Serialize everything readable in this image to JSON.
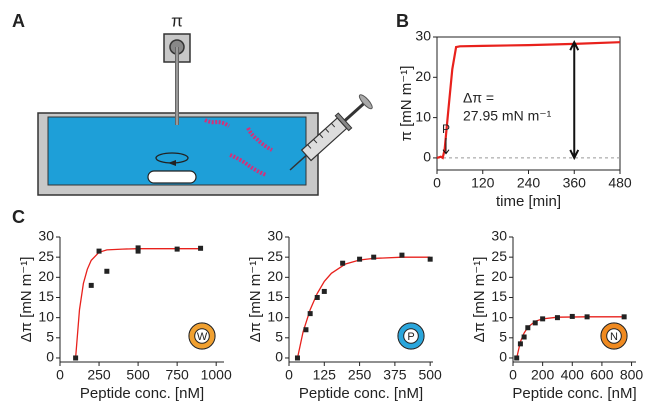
{
  "panel_labels": [
    "A",
    "B",
    "C"
  ],
  "diagram": {
    "balance_label": "π"
  },
  "chart_data": [
    {
      "type": "line",
      "x_label": "time [min]",
      "y_label": "π [mN m⁻¹]",
      "x": [
        0,
        10,
        15,
        20,
        30,
        40,
        50,
        60,
        120,
        240,
        360,
        480
      ],
      "values": [
        0,
        0.3,
        0,
        2,
        12,
        22,
        27.5,
        27.7,
        27.8,
        28,
        28.3,
        28.7
      ],
      "color": "#e8211c",
      "baseline": 0,
      "xlim": [
        0,
        480
      ],
      "xticks": [
        0,
        120,
        240,
        360,
        480
      ],
      "ylim": [
        -3,
        30
      ],
      "yticks": [
        0,
        10,
        20,
        30
      ],
      "annotations": [
        "Δπ =",
        "27.95 mN m⁻¹",
        "P"
      ]
    },
    {
      "type": "scatter",
      "x_label": "Peptide conc. [nM]",
      "y_label": "Δπ [mN m⁻¹]",
      "x": [
        100,
        200,
        250,
        300,
        500,
        500,
        750,
        900
      ],
      "values": [
        0,
        18,
        26.5,
        21.5,
        26.5,
        27.3,
        27,
        27.2
      ],
      "color": "#222222",
      "fit": {
        "x": [
          100,
          125,
          150,
          175,
          200,
          250,
          300,
          400,
          500,
          700,
          900
        ],
        "values": [
          0,
          12,
          18.5,
          22,
          24.2,
          26.2,
          26.8,
          27,
          27.1,
          27.1,
          27.1
        ],
        "color": "#e8211c"
      },
      "xlim": [
        0,
        1050
      ],
      "xticks": [
        0,
        250,
        500,
        750,
        1000
      ],
      "ylim": [
        -1,
        30
      ],
      "yticks": [
        0,
        5,
        10,
        15,
        20,
        25,
        30
      ],
      "icon": {
        "label": "W",
        "color": "#f0a030"
      }
    },
    {
      "type": "scatter",
      "x_label": "Peptide conc. [nM]",
      "y_label": "Δπ [mN m⁻¹]",
      "x": [
        30,
        60,
        75,
        100,
        125,
        190,
        250,
        300,
        400,
        500
      ],
      "values": [
        0,
        7,
        11,
        15,
        16.5,
        23.5,
        24.5,
        25,
        25.5,
        24.5
      ],
      "color": "#222222",
      "fit": {
        "x": [
          30,
          50,
          75,
          100,
          125,
          150,
          200,
          250,
          300,
          400,
          500
        ],
        "values": [
          0,
          6.5,
          12,
          16,
          19,
          21,
          23.3,
          24.3,
          24.7,
          25,
          25
        ],
        "color": "#e8211c"
      },
      "xlim": [
        0,
        510
      ],
      "xticks": [
        0,
        125,
        250,
        375,
        500
      ],
      "ylim": [
        -1,
        30
      ],
      "yticks": [
        0,
        5,
        10,
        15,
        20,
        25,
        30
      ],
      "icon": {
        "label": "P",
        "color": "#2aa6dc"
      }
    },
    {
      "type": "scatter",
      "x_label": "Peptide conc. [nM]",
      "y_label": "Δπ [mN m⁻¹]",
      "x": [
        25,
        50,
        75,
        100,
        150,
        200,
        300,
        400,
        500,
        750
      ],
      "values": [
        0,
        3.5,
        5.2,
        7.5,
        8.7,
        9.7,
        10,
        10.3,
        10.2,
        10.2
      ],
      "color": "#222222",
      "fit": {
        "x": [
          25,
          50,
          75,
          100,
          150,
          200,
          300,
          500,
          750
        ],
        "values": [
          0,
          4,
          6.2,
          7.6,
          9.1,
          9.7,
          10.1,
          10.2,
          10.2
        ],
        "color": "#e8211c"
      },
      "xlim": [
        0,
        830
      ],
      "xticks": [
        0,
        200,
        400,
        600,
        800
      ],
      "ylim": [
        -1,
        30
      ],
      "yticks": [
        0,
        5,
        10,
        15,
        20,
        25,
        30
      ],
      "icon": {
        "label": "N",
        "color": "#f08a20"
      }
    }
  ]
}
